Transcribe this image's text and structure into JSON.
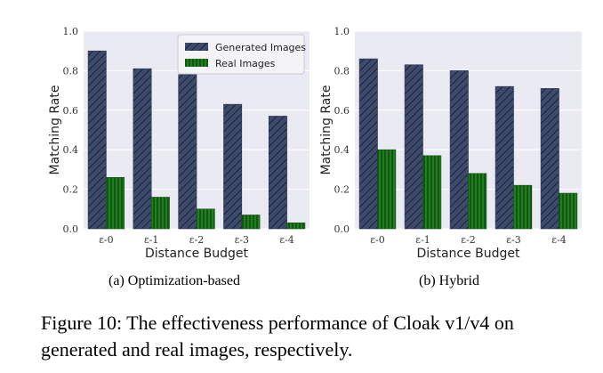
{
  "chart_data": [
    {
      "type": "bar",
      "panel_caption": "(a) Optimization-based",
      "categories": [
        "ε-0",
        "ε-1",
        "ε-2",
        "ε-3",
        "ε-4"
      ],
      "xlabel": "Distance Budget",
      "ylabel": "Matching Rate",
      "ylim": [
        0,
        1.0
      ],
      "yticks": [
        "0.0",
        "0.2",
        "0.4",
        "0.6",
        "0.8",
        "1.0"
      ],
      "grid": true,
      "legend": "top-right",
      "series": [
        {
          "name": "Generated Images",
          "values": [
            0.9,
            0.81,
            0.78,
            0.63,
            0.57
          ],
          "color": "#3d4a6b"
        },
        {
          "name": "Real Images",
          "values": [
            0.26,
            0.16,
            0.1,
            0.07,
            0.03
          ],
          "color": "#1d7a1d"
        }
      ]
    },
    {
      "type": "bar",
      "panel_caption": "(b) Hybrid",
      "categories": [
        "ε-0",
        "ε-1",
        "ε-2",
        "ε-3",
        "ε-4"
      ],
      "xlabel": "Distance Budget",
      "ylabel": "Matching Rate",
      "ylim": [
        0,
        1.0
      ],
      "yticks": [
        "0.0",
        "0.2",
        "0.4",
        "0.6",
        "0.8",
        "1.0"
      ],
      "grid": true,
      "series": [
        {
          "values": [
            0.86,
            0.83,
            0.8,
            0.72,
            0.71
          ],
          "color": "#3d4a6b"
        },
        {
          "values": [
            0.4,
            0.37,
            0.28,
            0.22,
            0.18
          ],
          "color": "#1d7a1d"
        }
      ]
    }
  ],
  "figure_caption": "Figure 10: The effectiveness performance of Cloak v1/v4 on generated and real images, respectively."
}
